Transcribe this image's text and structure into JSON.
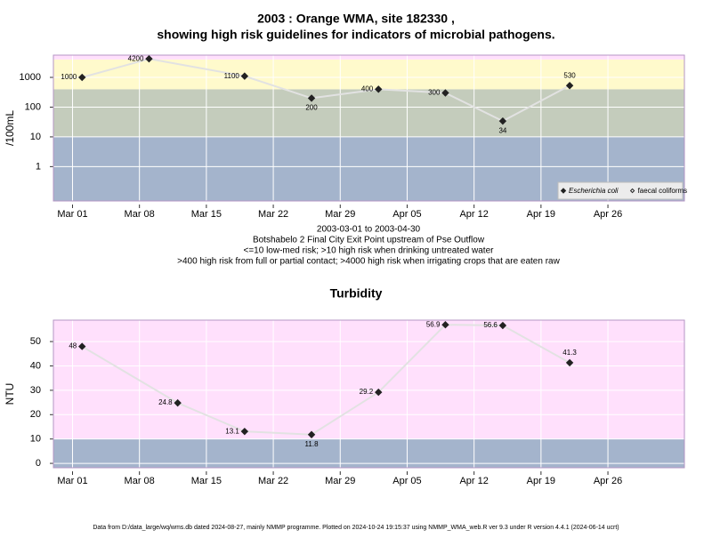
{
  "chart_data": [
    {
      "type": "line",
      "title": [
        "2003 : Orange WMA, site 182330 ,",
        "showing high risk guidelines for indicators of microbial pathogens."
      ],
      "ylabel": "/100mL",
      "log_y": true,
      "x": [
        "2003-03-02",
        "2003-03-09",
        "2003-03-19",
        "2003-03-26",
        "2003-04-02",
        "2003-04-09",
        "2003-04-15",
        "2003-04-22"
      ],
      "series": [
        {
          "name": "Escherichia coli",
          "italic": true,
          "marker": "filled",
          "color": "#222222",
          "values": [
            1000,
            4200,
            1100,
            200,
            400,
            300,
            34,
            530
          ]
        },
        {
          "name": "faecal coliforms",
          "italic": false,
          "marker": "open",
          "color": "#222222",
          "values": [
            null,
            null,
            null,
            null,
            null,
            null,
            null,
            null
          ]
        }
      ],
      "line_color": "#e2e2e2",
      "xlim": [
        "2003-02-27",
        "2003-05-04"
      ],
      "xticks": [
        {
          "value": "2003-03-01",
          "label": "Mar 01"
        },
        {
          "value": "2003-03-08",
          "label": "Mar 08"
        },
        {
          "value": "2003-03-15",
          "label": "Mar 15"
        },
        {
          "value": "2003-03-22",
          "label": "Mar 22"
        },
        {
          "value": "2003-03-29",
          "label": "Mar 29"
        },
        {
          "value": "2003-04-05",
          "label": "Apr 05"
        },
        {
          "value": "2003-04-12",
          "label": "Apr 12"
        },
        {
          "value": "2003-04-19",
          "label": "Apr 19"
        },
        {
          "value": "2003-04-26",
          "label": "Apr 26"
        }
      ],
      "ylim": [
        0.07,
        5600
      ],
      "yticks": [
        1,
        10,
        100,
        1000
      ],
      "band_breaks": [
        10,
        400,
        4000
      ],
      "band_colors": [
        "#a4b4cc",
        "#c4ccbc",
        "#fffacc",
        "#ffe0fc"
      ],
      "grid": true,
      "legend": "bottom-right",
      "caption": [
        "2003-03-01 to 2003-04-30",
        "Botshabelo 2 Final City Exit Point upstream of Pse Outflow",
        "<=10 low-med risk; >10 high risk when drinking untreated water",
        ">400 high risk from full or partial contact; >4000 high risk when irrigating crops that are eaten raw"
      ]
    },
    {
      "type": "line",
      "title": "Turbidity",
      "ylabel": "NTU",
      "log_y": false,
      "x": [
        "2003-03-02",
        "2003-03-12",
        "2003-03-19",
        "2003-03-26",
        "2003-04-02",
        "2003-04-09",
        "2003-04-15",
        "2003-04-22"
      ],
      "values": [
        48,
        24.8,
        13.1,
        11.8,
        29.2,
        56.9,
        56.6,
        41.3
      ],
      "color": "#222222",
      "line_color": "#e2e2e2",
      "xlim": [
        "2003-02-27",
        "2003-05-04"
      ],
      "xticks": [
        {
          "value": "2003-03-01",
          "label": "Mar 01"
        },
        {
          "value": "2003-03-08",
          "label": "Mar 08"
        },
        {
          "value": "2003-03-15",
          "label": "Mar 15"
        },
        {
          "value": "2003-03-22",
          "label": "Mar 22"
        },
        {
          "value": "2003-03-29",
          "label": "Mar 29"
        },
        {
          "value": "2003-04-05",
          "label": "Apr 05"
        },
        {
          "value": "2003-04-12",
          "label": "Apr 12"
        },
        {
          "value": "2003-04-19",
          "label": "Apr 19"
        },
        {
          "value": "2003-04-26",
          "label": "Apr 26"
        }
      ],
      "ylim": [
        -1.8,
        58.8
      ],
      "yticks": [
        0,
        10,
        20,
        30,
        40,
        50
      ],
      "band_breaks": [
        10
      ],
      "band_colors": [
        "#a4b4cc",
        "#ffe0fc"
      ],
      "grid": true
    }
  ],
  "footer": "Data from D:/data_large/wq/wms.db dated 2024-08-27, mainly NMMP programme. Plotted on 2024-10-24 19:15:37 using NMMP_WMA_web.R ver 9.3 under R version 4.4.1 (2024-06-14 ucrt)"
}
